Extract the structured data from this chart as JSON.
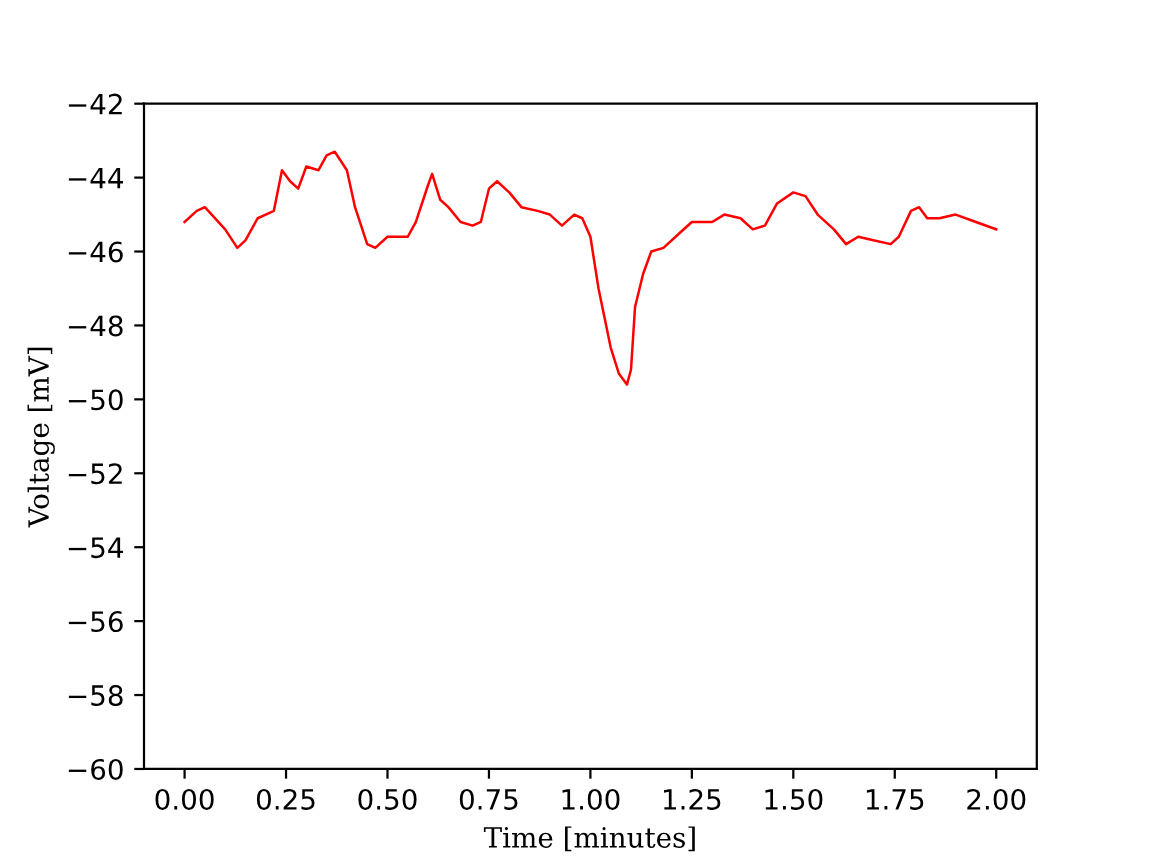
{
  "chart_data": {
    "type": "line",
    "xlabel": "Time [minutes]",
    "ylabel": "Voltage [mV]",
    "xlim": [
      -0.1,
      2.1
    ],
    "ylim": [
      -60,
      -42
    ],
    "xticks": [
      {
        "value": 0,
        "label": "0.00"
      },
      {
        "value": 0.25,
        "label": "0.25"
      },
      {
        "value": 0.5,
        "label": "0.50"
      },
      {
        "value": 0.75,
        "label": "0.75"
      },
      {
        "value": 1,
        "label": "1.00"
      },
      {
        "value": 1.25,
        "label": "1.25"
      },
      {
        "value": 1.5,
        "label": "1.50"
      },
      {
        "value": 1.75,
        "label": "1.75"
      },
      {
        "value": 2,
        "label": "2.00"
      }
    ],
    "yticks": [
      {
        "value": -60,
        "label": "−60"
      },
      {
        "value": -58,
        "label": "−58"
      },
      {
        "value": -56,
        "label": "−56"
      },
      {
        "value": -54,
        "label": "−54"
      },
      {
        "value": -52,
        "label": "−52"
      },
      {
        "value": -50,
        "label": "−50"
      },
      {
        "value": -48,
        "label": "−48"
      },
      {
        "value": -46,
        "label": "−46"
      },
      {
        "value": -44,
        "label": "−44"
      },
      {
        "value": -42,
        "label": "−42"
      }
    ],
    "grid": false,
    "marker": "none",
    "line_style": "solid",
    "series": [
      {
        "color": "#ff0000",
        "x": [
          0,
          0.03,
          0.05,
          0.1,
          0.13,
          0.15,
          0.18,
          0.2,
          0.22,
          0.24,
          0.26,
          0.28,
          0.3,
          0.33,
          0.35,
          0.37,
          0.4,
          0.42,
          0.45,
          0.47,
          0.5,
          0.55,
          0.57,
          0.6,
          0.61,
          0.63,
          0.65,
          0.68,
          0.71,
          0.73,
          0.75,
          0.77,
          0.8,
          0.83,
          0.87,
          0.9,
          0.93,
          0.96,
          0.98,
          1.0,
          1.02,
          1.05,
          1.07,
          1.09,
          1.1,
          1.11,
          1.13,
          1.15,
          1.18,
          1.22,
          1.25,
          1.3,
          1.33,
          1.37,
          1.4,
          1.43,
          1.46,
          1.5,
          1.53,
          1.56,
          1.6,
          1.63,
          1.66,
          1.7,
          1.74,
          1.76,
          1.79,
          1.81,
          1.83,
          1.86,
          1.9,
          1.95,
          2.0
        ],
        "values": [
          -45.2,
          -44.9,
          -44.8,
          -45.4,
          -45.9,
          -45.7,
          -45.1,
          -45.0,
          -44.9,
          -43.8,
          -44.1,
          -44.3,
          -43.7,
          -43.8,
          -43.4,
          -43.3,
          -43.8,
          -44.8,
          -45.8,
          -45.9,
          -45.6,
          -45.6,
          -45.2,
          -44.2,
          -43.9,
          -44.6,
          -44.8,
          -45.2,
          -45.3,
          -45.2,
          -44.3,
          -44.1,
          -44.4,
          -44.8,
          -44.9,
          -45.0,
          -45.3,
          -45.0,
          -45.1,
          -45.6,
          -47.0,
          -48.6,
          -49.3,
          -49.6,
          -49.2,
          -47.5,
          -46.6,
          -46.0,
          -45.9,
          -45.5,
          -45.2,
          -45.2,
          -45.0,
          -45.1,
          -45.4,
          -45.3,
          -44.7,
          -44.4,
          -44.5,
          -45.0,
          -45.4,
          -45.8,
          -45.6,
          -45.7,
          -45.8,
          -45.6,
          -44.9,
          -44.8,
          -45.1,
          -45.1,
          -45.0,
          -45.2,
          -45.4
        ]
      }
    ]
  }
}
